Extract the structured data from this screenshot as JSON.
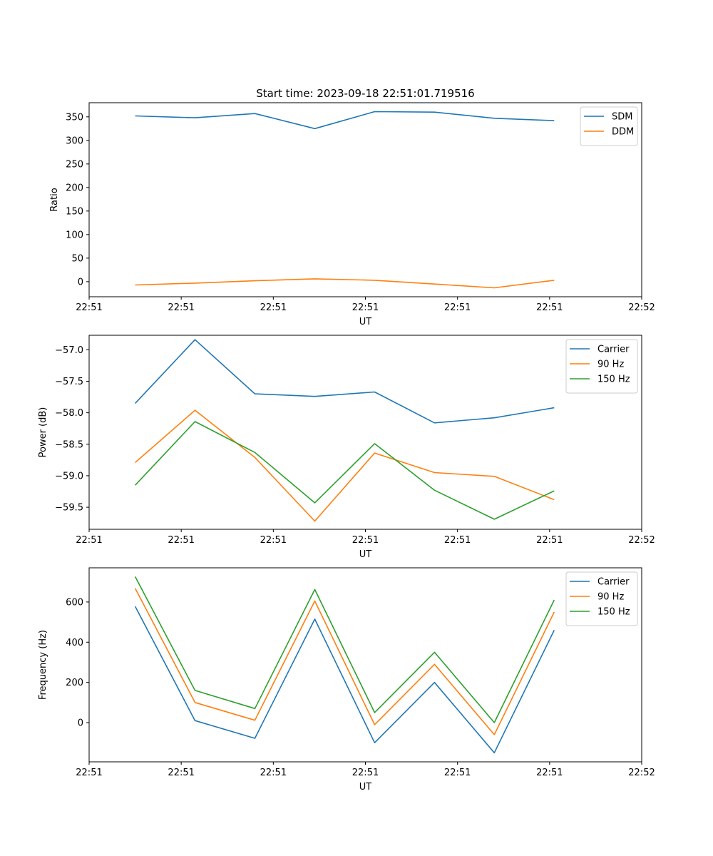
{
  "figure": {
    "title": "Start time: 2023-09-18 22:51:01.719516"
  },
  "chart_data": [
    {
      "type": "line",
      "title": "Start time: 2023-09-18 22:51:01.719516",
      "xlabel": "UT",
      "ylabel": "Ratio",
      "xlim": [
        0,
        6
      ],
      "ylim": [
        -32,
        380
      ],
      "x": [
        0.5,
        1.15,
        1.8,
        2.45,
        3.1,
        3.75,
        4.4,
        5.05
      ],
      "x_ticks": [
        0,
        1,
        2,
        3,
        4,
        5,
        6
      ],
      "x_tick_labels": [
        "22:51",
        "22:51",
        "22:51",
        "22:51",
        "22:51",
        "22:51",
        "22:52"
      ],
      "y_ticks": [
        0,
        50,
        100,
        150,
        200,
        250,
        300,
        350
      ],
      "y_tick_labels": [
        "0",
        "50",
        "100",
        "150",
        "200",
        "250",
        "300",
        "350"
      ],
      "legend_position": "top-right",
      "series": [
        {
          "name": "SDM",
          "color": "#1f77b4",
          "values": [
            352,
            348,
            357,
            325,
            361,
            360,
            347,
            342
          ]
        },
        {
          "name": "DDM",
          "color": "#ff7f0e",
          "values": [
            -7,
            -3,
            2,
            6,
            3,
            -5,
            -13,
            3
          ]
        }
      ]
    },
    {
      "type": "line",
      "title": "",
      "xlabel": "UT",
      "ylabel": "Power (dB)",
      "xlim": [
        0,
        6
      ],
      "ylim": [
        -59.85,
        -56.77
      ],
      "x": [
        0.5,
        1.15,
        1.8,
        2.45,
        3.1,
        3.75,
        4.4,
        5.05
      ],
      "x_ticks": [
        0,
        1,
        2,
        3,
        4,
        5,
        6
      ],
      "x_tick_labels": [
        "22:51",
        "22:51",
        "22:51",
        "22:51",
        "22:51",
        "22:51",
        "22:52"
      ],
      "y_ticks": [
        -59.5,
        -59.0,
        -58.5,
        -58.0,
        -57.5,
        -57.0
      ],
      "y_tick_labels": [
        "−59.5",
        "−59.0",
        "−58.5",
        "−58.0",
        "−57.5",
        "−57.0"
      ],
      "legend_position": "top-right",
      "series": [
        {
          "name": "Carrier",
          "color": "#1f77b4",
          "values": [
            -57.85,
            -56.84,
            -57.7,
            -57.74,
            -57.67,
            -58.16,
            -58.08,
            -57.92
          ]
        },
        {
          "name": "90 Hz",
          "color": "#ff7f0e",
          "values": [
            -58.79,
            -57.96,
            -58.71,
            -59.72,
            -58.64,
            -58.95,
            -59.01,
            -59.38
          ]
        },
        {
          "name": "150 Hz",
          "color": "#2ca02c",
          "values": [
            -59.15,
            -58.14,
            -58.63,
            -59.43,
            -58.49,
            -59.23,
            -59.69,
            -59.24
          ]
        }
      ]
    },
    {
      "type": "line",
      "title": "",
      "xlabel": "UT",
      "ylabel": "Frequency (Hz)",
      "xlim": [
        0,
        6
      ],
      "ylim": [
        -195,
        770
      ],
      "x": [
        0.5,
        1.15,
        1.8,
        2.45,
        3.1,
        3.75,
        4.4,
        5.05
      ],
      "x_ticks": [
        0,
        1,
        2,
        3,
        4,
        5,
        6
      ],
      "x_tick_labels": [
        "22:51",
        "22:51",
        "22:51",
        "22:51",
        "22:51",
        "22:51",
        "22:52"
      ],
      "y_ticks": [
        0,
        200,
        400,
        600
      ],
      "y_tick_labels": [
        "0",
        "200",
        "400",
        "600"
      ],
      "legend_position": "top-right",
      "series": [
        {
          "name": "Carrier",
          "color": "#1f77b4",
          "values": [
            578,
            10,
            -78,
            515,
            -100,
            200,
            -150,
            460
          ]
        },
        {
          "name": "90 Hz",
          "color": "#ff7f0e",
          "values": [
            668,
            100,
            12,
            605,
            -10,
            290,
            -60,
            550
          ]
        },
        {
          "name": "150 Hz",
          "color": "#2ca02c",
          "values": [
            726,
            160,
            70,
            662,
            50,
            350,
            0,
            610
          ]
        }
      ]
    }
  ]
}
